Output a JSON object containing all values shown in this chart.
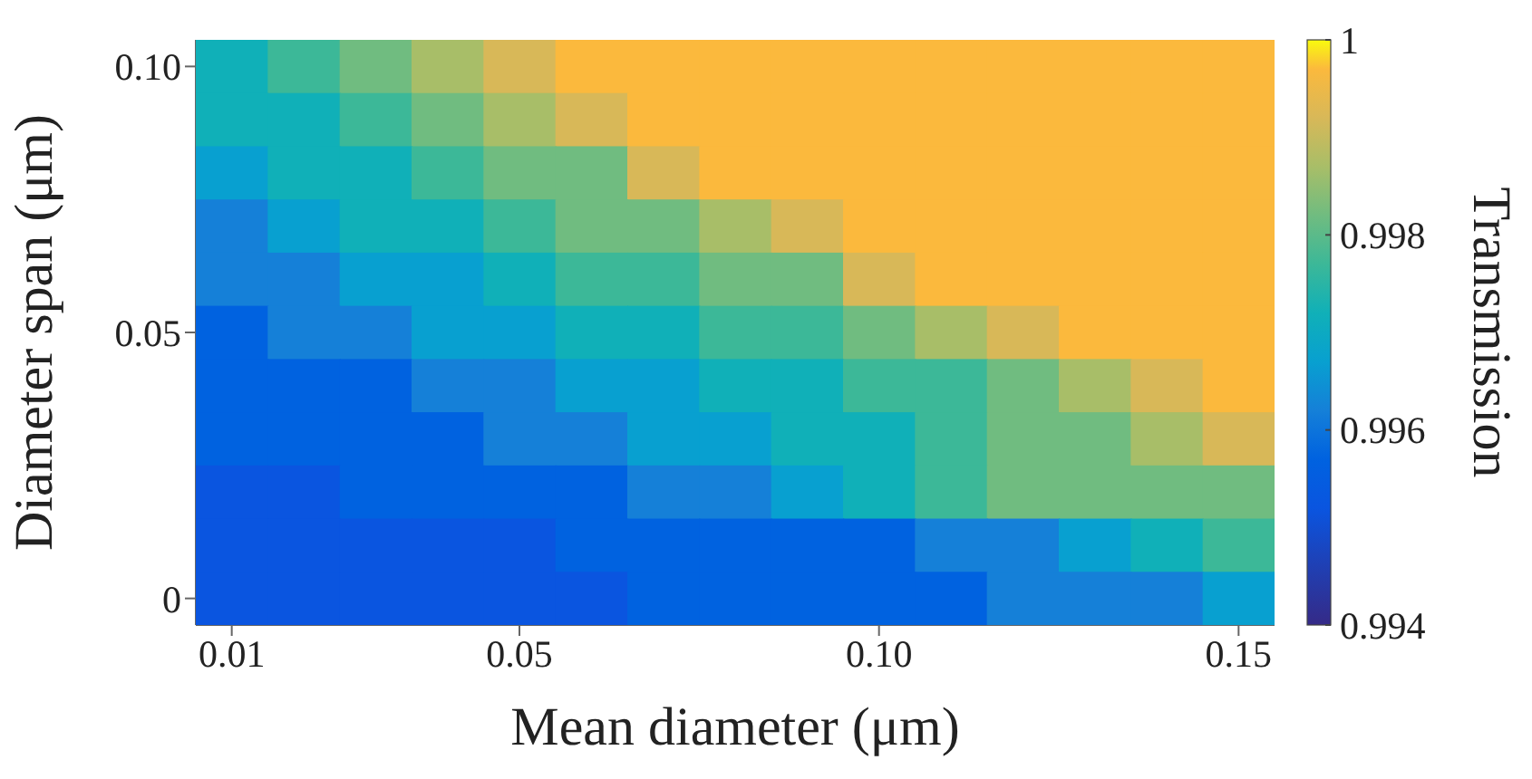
{
  "chart_data": {
    "type": "heatmap",
    "xlabel": "Mean diameter (μm)",
    "ylabel": "Diameter span (μm)",
    "clabel": "Transmission",
    "categories": [
      "0.01",
      null,
      null,
      null,
      "0.05",
      null,
      null,
      null,
      null,
      "0.10",
      null,
      null,
      null,
      null,
      "0.15"
    ],
    "y_categories": [
      "0.10",
      null,
      null,
      null,
      null,
      "0.05",
      null,
      null,
      null,
      null,
      "0"
    ],
    "clim": [
      0.994,
      1
    ],
    "cticks": [
      0.994,
      0.996,
      0.998,
      1
    ],
    "cells": [
      [
        0.9972,
        0.9977,
        0.9982,
        0.9987,
        0.9992,
        0.9997,
        0.9997,
        0.9997,
        0.9997,
        0.9997,
        0.9997,
        0.9997,
        0.9997,
        0.9997,
        0.9997
      ],
      [
        0.9972,
        0.9972,
        0.9977,
        0.9982,
        0.9987,
        0.9992,
        0.9997,
        0.9997,
        0.9997,
        0.9997,
        0.9997,
        0.9997,
        0.9997,
        0.9997,
        0.9997
      ],
      [
        0.9967,
        0.9972,
        0.9972,
        0.9977,
        0.9982,
        0.9982,
        0.9992,
        0.9997,
        0.9997,
        0.9997,
        0.9997,
        0.9997,
        0.9997,
        0.9997,
        0.9997
      ],
      [
        0.9962,
        0.9967,
        0.9972,
        0.9972,
        0.9977,
        0.9982,
        0.9982,
        0.9987,
        0.9992,
        0.9997,
        0.9997,
        0.9997,
        0.9997,
        0.9997,
        0.9997
      ],
      [
        0.9962,
        0.9962,
        0.9967,
        0.9967,
        0.9972,
        0.9977,
        0.9977,
        0.9982,
        0.9982,
        0.9992,
        0.9997,
        0.9997,
        0.9997,
        0.9997,
        0.9997
      ],
      [
        0.9957,
        0.9962,
        0.9962,
        0.9967,
        0.9967,
        0.9972,
        0.9972,
        0.9977,
        0.9977,
        0.9982,
        0.9987,
        0.9992,
        0.9997,
        0.9997,
        0.9997
      ],
      [
        0.9957,
        0.9957,
        0.9957,
        0.9962,
        0.9962,
        0.9967,
        0.9967,
        0.9972,
        0.9972,
        0.9977,
        0.9977,
        0.9982,
        0.9987,
        0.9992,
        0.9997
      ],
      [
        0.9957,
        0.9957,
        0.9957,
        0.9957,
        0.9962,
        0.9962,
        0.9967,
        0.9967,
        0.9972,
        0.9972,
        0.9977,
        0.9982,
        0.9982,
        0.9987,
        0.9992
      ],
      [
        0.9952,
        0.9952,
        0.9957,
        0.9957,
        0.9957,
        0.9957,
        0.9962,
        0.9962,
        0.9967,
        0.9972,
        0.9977,
        0.9982,
        0.9982,
        0.9982,
        0.9982
      ],
      [
        0.9952,
        0.9952,
        0.9952,
        0.9952,
        0.9952,
        0.9957,
        0.9957,
        0.9957,
        0.9957,
        0.9957,
        0.9962,
        0.9962,
        0.9967,
        0.9972,
        0.9977
      ],
      [
        0.9952,
        0.9952,
        0.9952,
        0.9952,
        0.9952,
        0.9952,
        0.9957,
        0.9957,
        0.9957,
        0.9957,
        0.9957,
        0.9962,
        0.9962,
        0.9962,
        0.9967
      ]
    ]
  }
}
